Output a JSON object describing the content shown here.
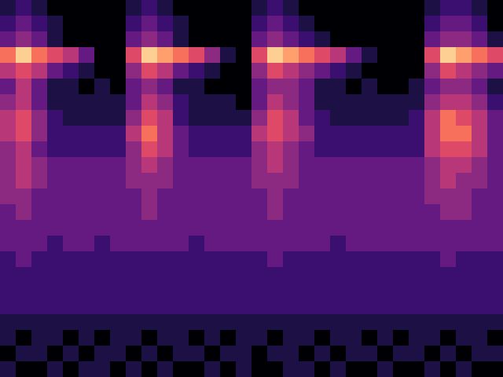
{
  "chart_data": {
    "type": "heatmap",
    "tick_labels": false,
    "clim": [
      0,
      10
    ],
    "cells": [
      [
        1,
        2,
        1,
        0,
        0,
        0,
        0,
        0,
        1,
        2,
        1,
        0,
        0,
        0,
        0,
        0,
        1,
        2,
        1,
        0,
        0,
        0,
        0,
        0,
        0,
        0,
        0,
        1,
        2,
        2,
        1,
        0
      ],
      [
        2,
        3,
        2,
        1,
        0,
        0,
        0,
        0,
        2,
        3,
        2,
        1,
        0,
        0,
        0,
        0,
        2,
        3,
        2,
        1,
        0,
        0,
        0,
        0,
        0,
        0,
        0,
        2,
        3,
        3,
        2,
        0
      ],
      [
        3,
        4,
        3,
        1,
        0,
        0,
        0,
        0,
        3,
        4,
        3,
        1,
        0,
        0,
        0,
        0,
        3,
        4,
        3,
        2,
        1,
        0,
        0,
        0,
        0,
        0,
        0,
        3,
        4,
        4,
        3,
        1
      ],
      [
        7,
        9,
        7,
        6,
        5,
        3,
        0,
        0,
        6,
        9,
        8,
        7,
        6,
        4,
        1,
        0,
        6,
        9,
        8,
        7,
        6,
        5,
        3,
        1,
        0,
        0,
        0,
        6,
        9,
        8,
        7,
        6
      ],
      [
        5,
        6,
        5,
        3,
        2,
        1,
        0,
        0,
        4,
        6,
        5,
        3,
        2,
        1,
        0,
        0,
        4,
        6,
        5,
        4,
        3,
        2,
        1,
        0,
        0,
        0,
        0,
        4,
        6,
        5,
        4,
        3
      ],
      [
        3,
        5,
        3,
        1,
        1,
        0,
        1,
        0,
        3,
        4,
        3,
        1,
        1,
        0,
        0,
        0,
        3,
        4,
        4,
        3,
        1,
        1,
        0,
        1,
        0,
        0,
        1,
        3,
        4,
        4,
        3,
        1
      ],
      [
        4,
        5,
        3,
        1,
        1,
        1,
        1,
        1,
        3,
        5,
        4,
        2,
        1,
        1,
        1,
        0,
        3,
        5,
        4,
        3,
        1,
        1,
        1,
        1,
        1,
        1,
        1,
        4,
        5,
        5,
        4,
        2
      ],
      [
        5,
        6,
        4,
        2,
        1,
        1,
        1,
        1,
        4,
        6,
        5,
        2,
        1,
        1,
        1,
        1,
        4,
        6,
        5,
        3,
        2,
        1,
        1,
        1,
        1,
        1,
        2,
        5,
        7,
        6,
        5,
        3
      ],
      [
        5,
        6,
        4,
        2,
        2,
        2,
        2,
        2,
        5,
        7,
        5,
        3,
        2,
        2,
        2,
        2,
        5,
        6,
        5,
        4,
        2,
        2,
        2,
        2,
        2,
        2,
        2,
        5,
        7,
        7,
        5,
        3
      ],
      [
        4,
        5,
        3,
        2,
        2,
        2,
        2,
        2,
        4,
        6,
        5,
        3,
        2,
        2,
        2,
        2,
        4,
        5,
        4,
        3,
        2,
        2,
        2,
        2,
        2,
        2,
        2,
        5,
        6,
        6,
        5,
        3
      ],
      [
        4,
        5,
        4,
        3,
        3,
        3,
        3,
        3,
        4,
        5,
        4,
        3,
        3,
        3,
        3,
        3,
        4,
        5,
        4,
        3,
        3,
        3,
        3,
        3,
        3,
        3,
        3,
        4,
        5,
        5,
        4,
        3
      ],
      [
        4,
        5,
        4,
        3,
        3,
        3,
        3,
        3,
        4,
        4,
        4,
        3,
        3,
        3,
        3,
        3,
        4,
        4,
        4,
        3,
        3,
        3,
        3,
        3,
        3,
        3,
        3,
        4,
        5,
        4,
        4,
        3
      ],
      [
        4,
        4,
        3,
        3,
        3,
        3,
        3,
        3,
        3,
        4,
        3,
        3,
        3,
        3,
        3,
        3,
        3,
        4,
        3,
        3,
        3,
        3,
        3,
        3,
        3,
        3,
        3,
        4,
        4,
        4,
        3,
        3
      ],
      [
        3,
        4,
        3,
        3,
        3,
        3,
        3,
        3,
        3,
        4,
        3,
        3,
        3,
        3,
        3,
        3,
        3,
        4,
        3,
        3,
        3,
        3,
        3,
        3,
        3,
        3,
        3,
        3,
        4,
        4,
        3,
        3
      ],
      [
        3,
        3,
        3,
        3,
        3,
        3,
        3,
        3,
        3,
        3,
        3,
        3,
        3,
        3,
        3,
        3,
        3,
        3,
        3,
        3,
        3,
        3,
        3,
        3,
        3,
        3,
        3,
        3,
        3,
        3,
        3,
        3
      ],
      [
        3,
        3,
        3,
        2,
        3,
        3,
        2,
        3,
        3,
        3,
        3,
        3,
        2,
        3,
        3,
        3,
        3,
        3,
        3,
        3,
        3,
        2,
        3,
        3,
        3,
        3,
        3,
        3,
        3,
        3,
        3,
        3
      ],
      [
        2,
        3,
        2,
        2,
        2,
        2,
        2,
        2,
        2,
        2,
        2,
        2,
        2,
        2,
        2,
        2,
        2,
        3,
        2,
        2,
        2,
        2,
        2,
        2,
        2,
        2,
        2,
        2,
        3,
        2,
        2,
        2
      ],
      [
        2,
        2,
        2,
        2,
        2,
        2,
        2,
        2,
        2,
        2,
        2,
        2,
        2,
        2,
        2,
        2,
        2,
        2,
        2,
        2,
        2,
        2,
        2,
        2,
        2,
        2,
        2,
        2,
        2,
        2,
        2,
        2
      ],
      [
        2,
        2,
        2,
        2,
        2,
        2,
        2,
        2,
        2,
        2,
        2,
        2,
        2,
        2,
        2,
        2,
        2,
        2,
        2,
        2,
        2,
        2,
        2,
        2,
        2,
        2,
        2,
        2,
        2,
        2,
        2,
        2
      ],
      [
        2,
        2,
        2,
        2,
        2,
        2,
        2,
        2,
        2,
        2,
        2,
        2,
        2,
        2,
        2,
        2,
        2,
        2,
        2,
        2,
        2,
        2,
        2,
        2,
        2,
        2,
        2,
        2,
        2,
        2,
        2,
        2
      ],
      [
        1,
        1,
        1,
        1,
        1,
        1,
        1,
        1,
        1,
        1,
        1,
        1,
        1,
        1,
        1,
        1,
        1,
        1,
        1,
        1,
        1,
        1,
        1,
        1,
        1,
        1,
        1,
        1,
        1,
        1,
        1,
        1
      ],
      [
        1,
        0,
        1,
        1,
        0,
        1,
        0,
        1,
        1,
        0,
        1,
        1,
        0,
        1,
        0,
        1,
        1,
        0,
        1,
        1,
        0,
        1,
        1,
        0,
        1,
        0,
        1,
        1,
        0,
        1,
        1,
        0
      ],
      [
        0,
        1,
        1,
        0,
        1,
        0,
        1,
        1,
        0,
        1,
        0,
        1,
        1,
        0,
        1,
        1,
        0,
        1,
        1,
        0,
        1,
        0,
        1,
        1,
        0,
        1,
        1,
        0,
        1,
        0,
        1,
        1
      ],
      [
        1,
        0,
        0,
        1,
        0,
        1,
        1,
        0,
        1,
        0,
        1,
        0,
        0,
        1,
        0,
        1,
        0,
        0,
        1,
        1,
        0,
        1,
        0,
        0,
        1,
        0,
        0,
        1,
        0,
        1,
        0,
        0
      ]
    ]
  }
}
